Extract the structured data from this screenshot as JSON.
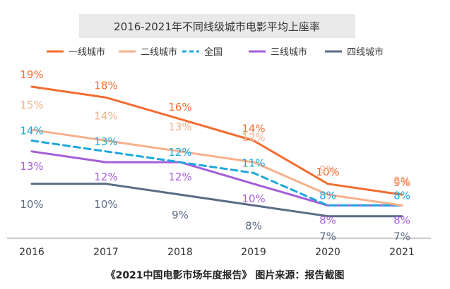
{
  "chart_data": {
    "type": "line",
    "title": "2016-2021年不同线级城市电影平均上座率",
    "categories": [
      "2016",
      "2017",
      "2018",
      "2019",
      "2020",
      "2021"
    ],
    "ylim": [
      6,
      20.5
    ],
    "grid": false,
    "legend": "top",
    "series": [
      {
        "name": "一线城市",
        "color": "#f36c30",
        "dash": false,
        "values": [
          19,
          18,
          16,
          14,
          10,
          9
        ],
        "labels": [
          "19%",
          "18%",
          "16%",
          "14%",
          "10%",
          "9%"
        ]
      },
      {
        "name": "二线城市",
        "color": "#f6b18d",
        "dash": false,
        "values": [
          15,
          14,
          13,
          12,
          9,
          8
        ],
        "labels": [
          "15%",
          "14%",
          "13%",
          "12%",
          "9%",
          "8%"
        ]
      },
      {
        "name": "全国",
        "color": "#1ea7dd",
        "dash": true,
        "values": [
          14,
          13,
          12,
          11,
          8,
          8
        ],
        "labels": [
          "14%",
          "13%",
          "12%",
          "11%",
          "8%",
          "8%"
        ]
      },
      {
        "name": "三线城市",
        "color": "#a35ed8",
        "dash": false,
        "values": [
          13,
          12,
          12,
          10,
          8,
          8
        ],
        "labels": [
          "13%",
          "12%",
          "12%",
          "10%",
          "8%",
          "8%"
        ]
      },
      {
        "name": "四线城市",
        "color": "#5a6b85",
        "dash": false,
        "values": [
          10,
          10,
          9,
          8,
          7,
          7
        ],
        "labels": [
          "10%",
          "10%",
          "9%",
          "8%",
          "7%",
          "7%"
        ]
      }
    ]
  },
  "caption": "《2021中国电影市场年度报告》 图片来源：报告截图"
}
